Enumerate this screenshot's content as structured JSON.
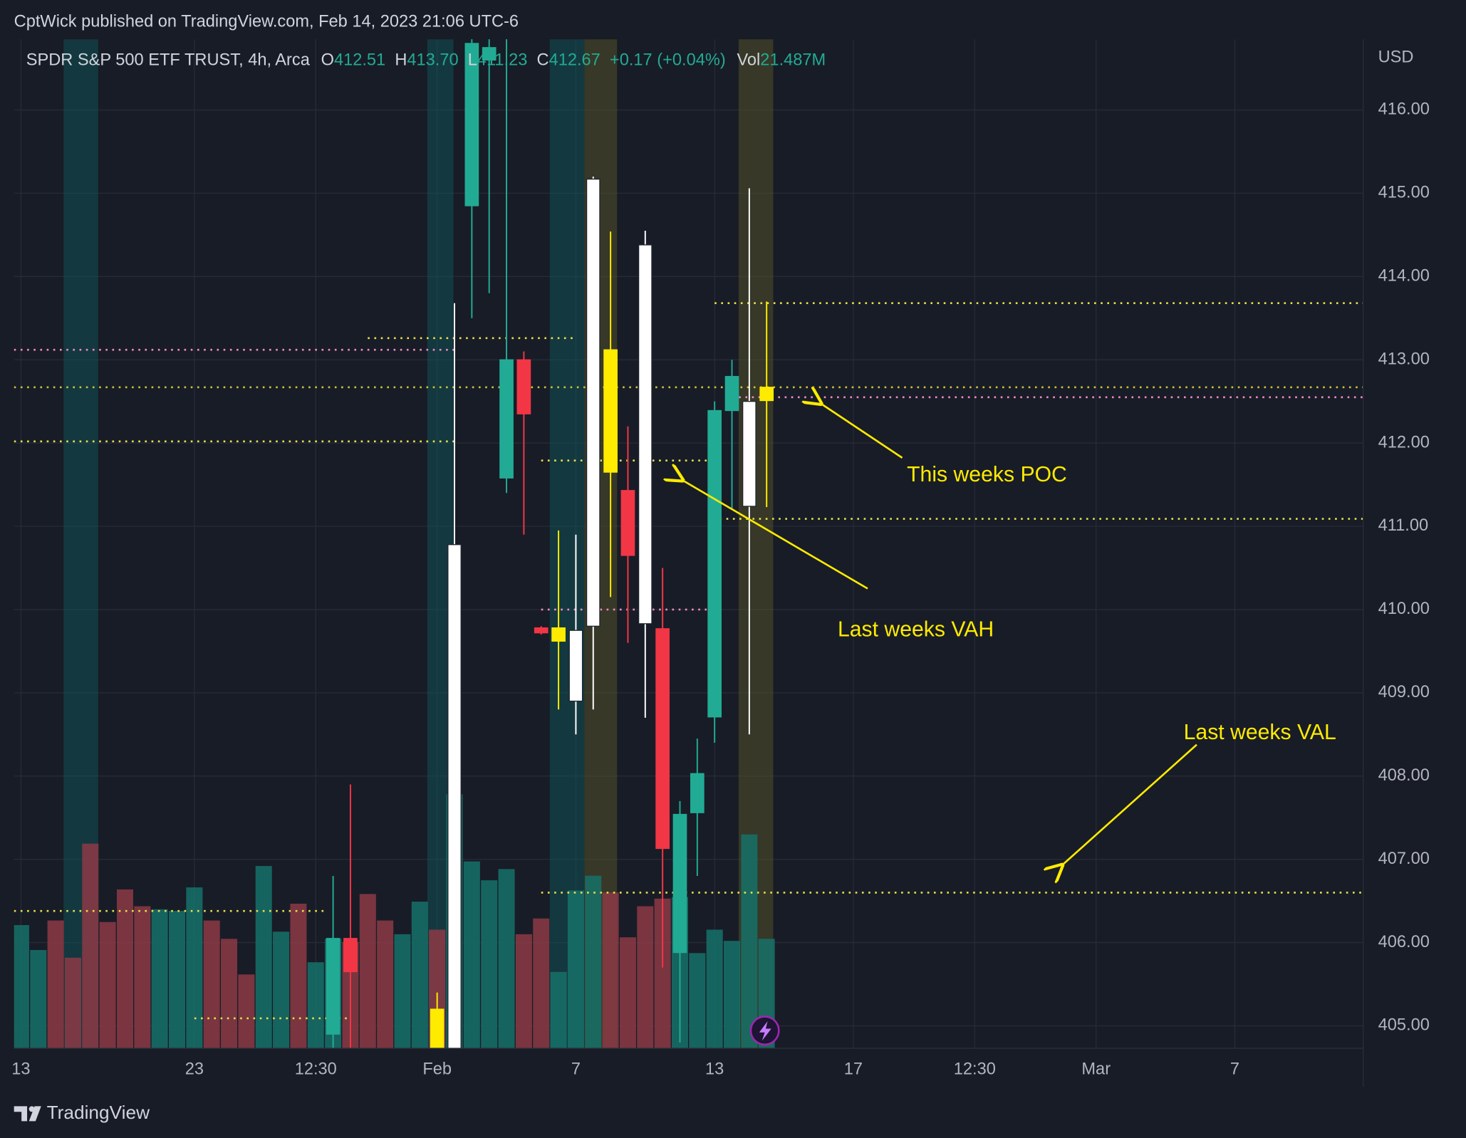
{
  "header": "CptWick published on TradingView.com, Feb 14, 2023 21:06 UTC-6",
  "legend": {
    "symbol": "SPDR S&P 500 ETF TRUST, 4h, Arca",
    "items": [
      {
        "key": "O",
        "value": "412.51"
      },
      {
        "key": "H",
        "value": "413.70"
      },
      {
        "key": "L",
        "value": "411.23"
      },
      {
        "key": "C",
        "value": "412.67"
      }
    ],
    "change": "+0.17 (+0.04%)",
    "volume_key": "Vol",
    "volume_value": "21.487M"
  },
  "footer": "TradingView",
  "chart_data": {
    "type": "candlestick",
    "currency": "USD",
    "x": [
      18,
      19,
      24,
      25,
      26,
      27,
      28,
      29,
      30,
      31,
      32,
      33,
      34,
      35,
      36,
      37,
      38,
      39,
      40,
      41,
      42,
      43
    ],
    "open": [
      404.9,
      406.05,
      405.2,
      404.7,
      414.85,
      416.6,
      411.58,
      413.0,
      409.78,
      409.78,
      408.9,
      409.8,
      413.12,
      411.43,
      409.83,
      409.77,
      405.88,
      407.56,
      408.71,
      412.39,
      411.24,
      412.51
    ],
    "high": [
      406.8,
      407.9,
      405.4,
      413.68,
      417,
      416.9,
      416.9,
      413.1,
      409.8,
      410.95,
      410.9,
      415.2,
      414.54,
      412.2,
      414.55,
      410.5,
      407.7,
      408.45,
      412.5,
      413.0,
      415.06,
      413.7
    ],
    "low": [
      404.6,
      404.5,
      404.6,
      404.6,
      413.5,
      413.8,
      411.4,
      410.9,
      409.7,
      408.8,
      408.5,
      408.8,
      410.15,
      409.6,
      408.7,
      405.7,
      404.8,
      406.8,
      408.4,
      411.2,
      408.5,
      411.23
    ],
    "close": [
      406.05,
      405.65,
      404.7,
      410.78,
      416.8,
      416.75,
      413.0,
      412.35,
      409.72,
      409.62,
      409.75,
      415.17,
      411.65,
      410.65,
      414.38,
      407.13,
      407.54,
      408.03,
      412.39,
      412.8,
      412.5,
      412.67
    ],
    "colors": [
      "#22ab94",
      "#f23645",
      "#ffeb00",
      "#ffffff",
      "#22ab94",
      "#22ab94",
      "#22ab94",
      "#f23645",
      "#f23645",
      "#ffeb00",
      "#ffffff",
      "#ffffff",
      "#ffeb00",
      "#f23645",
      "#ffffff",
      "#f23645",
      "#22ab94",
      "#22ab94",
      "#22ab94",
      "#22ab94",
      "#ffffff",
      "#ffeb00"
    ],
    "volume": {
      "values": [
        24.2,
        19.3,
        25.1,
        17.8,
        40.2,
        24.8,
        31.2,
        27.9,
        27.3,
        27.0,
        31.6,
        25.1,
        21.5,
        14.5,
        35.8,
        22.9,
        28.4,
        16.9,
        21.5,
        20.9,
        30.3,
        25.1,
        22.4,
        28.8,
        23.3,
        49.9,
        36.7,
        33.0,
        35.2,
        22.4,
        25.5,
        15.0,
        31.0,
        33.9,
        30.6,
        21.8,
        27.9,
        29.4,
        29.7,
        18.7,
        23.3,
        21.1,
        42.0,
        21.5
      ],
      "colors": [
        "#16716a",
        "#16716a",
        "#8c3a45",
        "#8c3a45",
        "#8c3a45",
        "#8c3a45",
        "#8c3a45",
        "#8c3a45",
        "#16716a",
        "#16716a",
        "#16716a",
        "#8c3a45",
        "#8c3a45",
        "#8c3a45",
        "#16716a",
        "#16716a",
        "#8c3a45",
        "#16716a",
        "#16716a",
        "#8c3a45",
        "#8c3a45",
        "#8c3a45",
        "#16716a",
        "#16716a",
        "#8c3a45",
        "#16716a",
        "#16716a",
        "#16716a",
        "#16716a",
        "#8c3a45",
        "#8c3a45",
        "#16716a",
        "#16716a",
        "#16716a",
        "#8c3a45",
        "#8c3a45",
        "#8c3a45",
        "#8c3a45",
        "#16716a",
        "#16716a",
        "#16716a",
        "#16716a",
        "#16716a",
        "#16716a"
      ]
    },
    "levels": [
      {
        "value": 413.68,
        "x0": 40,
        "x1": 77.4,
        "color": "#e8e04a"
      },
      {
        "value": 413.26,
        "x0": 20,
        "x1": 32,
        "color": "#e8e04a"
      },
      {
        "value": 413.12,
        "x0": -0.4,
        "x1": 25,
        "color": "#f08cc0"
      },
      {
        "value": 412.67,
        "x0": -0.4,
        "x1": 77.4,
        "color": "#c9c23a"
      },
      {
        "value": 412.55,
        "x0": 41.4,
        "x1": 77.4,
        "color": "#f08cc0"
      },
      {
        "value": 412.02,
        "x0": -0.4,
        "x1": 25,
        "color": "#e8e04a"
      },
      {
        "value": 411.79,
        "x0": 30,
        "x1": 39.8,
        "color": "#e8e04a"
      },
      {
        "value": 411.09,
        "x0": 40.3,
        "x1": 77.4,
        "color": "#e8e04a"
      },
      {
        "value": 410.0,
        "x0": 30,
        "x1": 39.8,
        "color": "#f08cc0"
      },
      {
        "value": 406.6,
        "x0": 30,
        "x1": 77.4,
        "color": "#e8e04a"
      },
      {
        "value": 406.38,
        "x0": -0.4,
        "x1": 17.7,
        "color": "#e8e04a"
      },
      {
        "value": 405.09,
        "x0": 10,
        "x1": 19,
        "color": "#e8e04a"
      }
    ],
    "xlim": [
      -0.4,
      77.4
    ],
    "xticks": [
      {
        "value": 0,
        "label": "13"
      },
      {
        "value": 10,
        "label": "23"
      },
      {
        "value": 17,
        "label": "12:30"
      },
      {
        "value": 24,
        "label": "Feb"
      },
      {
        "value": 32,
        "label": "7"
      },
      {
        "value": 40,
        "label": "13"
      },
      {
        "value": 48,
        "label": "17"
      },
      {
        "value": 55,
        "label": "12:30"
      },
      {
        "value": 62,
        "label": "Mar"
      },
      {
        "value": 70,
        "label": "7"
      }
    ],
    "ylim": [
      404.73,
      416.85
    ],
    "yticks": [
      {
        "value": 405,
        "label": "405.00"
      },
      {
        "value": 406,
        "label": "406.00"
      },
      {
        "value": 407,
        "label": "407.00"
      },
      {
        "value": 408,
        "label": "408.00"
      },
      {
        "value": 409,
        "label": "409.00"
      },
      {
        "value": 410,
        "label": "410.00"
      },
      {
        "value": 411,
        "label": "411.00"
      },
      {
        "value": 412,
        "label": "412.00"
      },
      {
        "value": 413,
        "label": "413.00"
      },
      {
        "value": 414,
        "label": "414.00"
      },
      {
        "value": 415,
        "label": "415.00"
      },
      {
        "value": 416,
        "label": "416.00"
      }
    ],
    "grid": true,
    "annotations": [
      "This weeks POC",
      "Last weeks VAH",
      "Last weeks VAL"
    ]
  }
}
